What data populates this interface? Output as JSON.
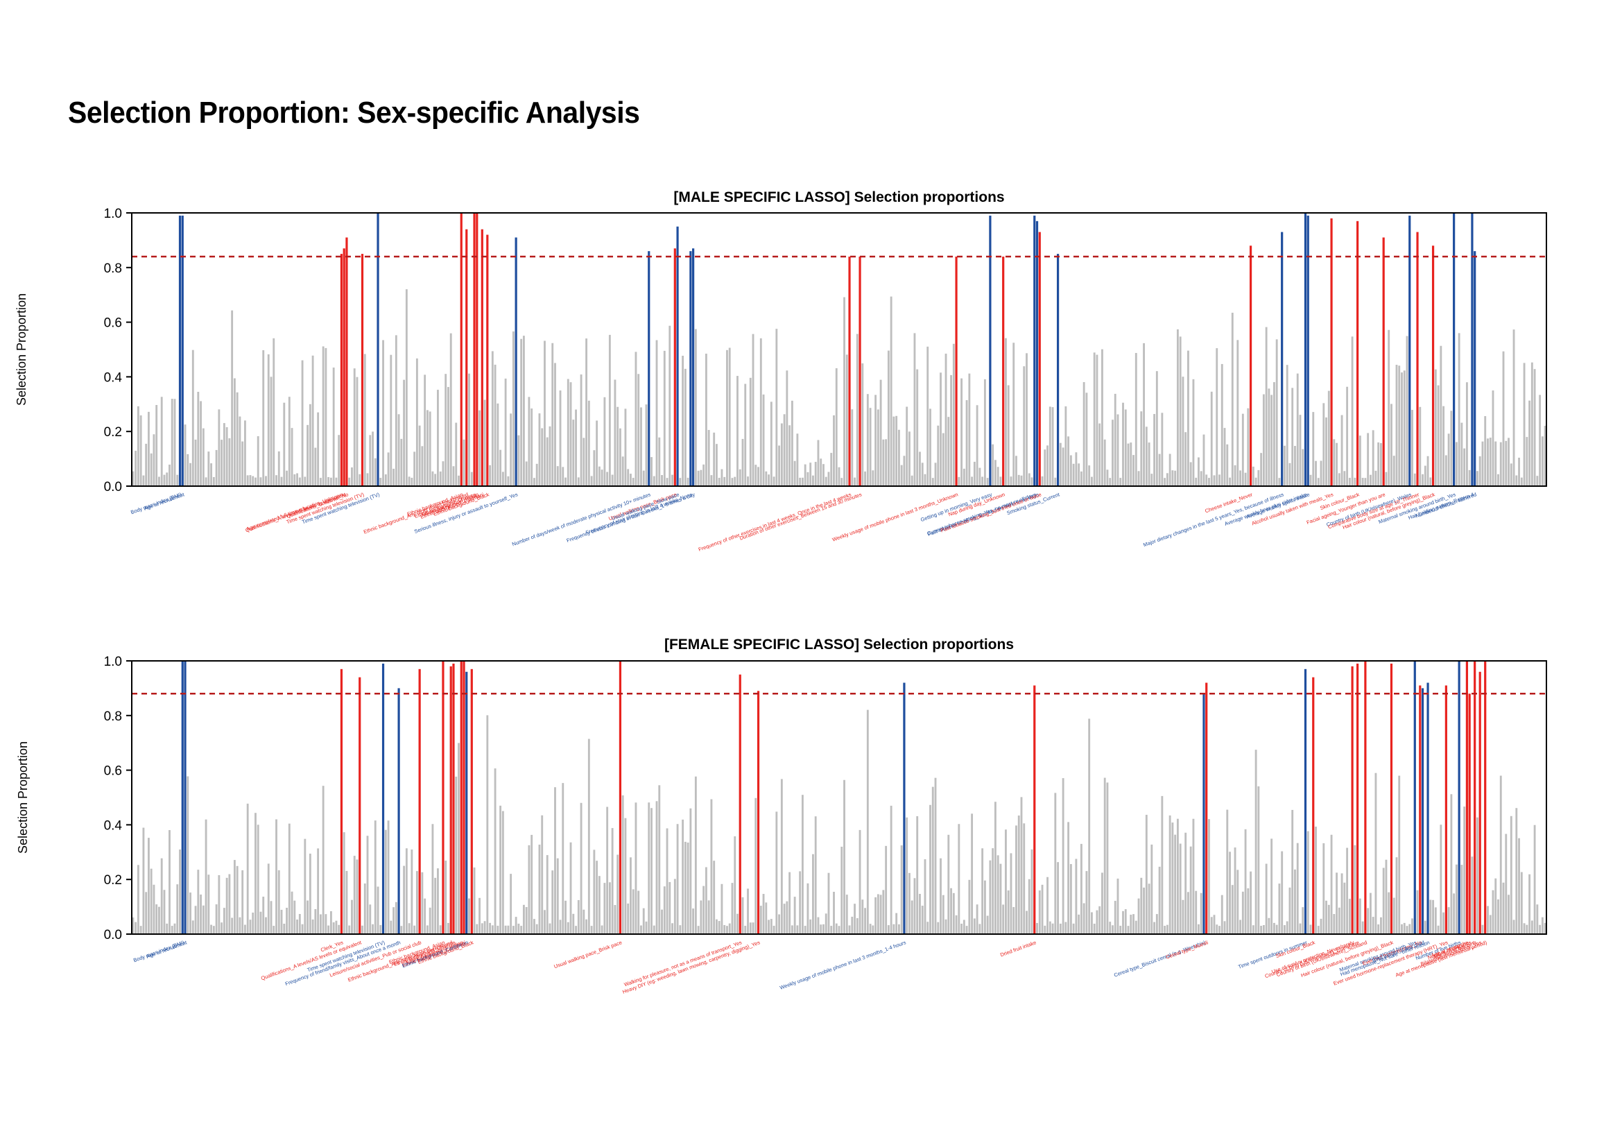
{
  "page": {
    "title": "Selection Proportion: Sex-specific Analysis"
  },
  "colors": {
    "neutral_bar": "#bebebe",
    "blue": "#1f4e9e",
    "red": "#e8231f",
    "threshold": "#b71c1c"
  },
  "chart_data": [
    {
      "type": "bar",
      "title": "[MALE SPECIFIC LASSO] Selection proportions",
      "ylabel": "Selection Proportion",
      "xlabel": "",
      "ylim": [
        0,
        1
      ],
      "yticks": [
        "0.0",
        "0.2",
        "0.4",
        "0.6",
        "0.8",
        "1.0"
      ],
      "threshold": 0.84,
      "n_predictors": 543,
      "highlighted": [
        {
          "label": "Body mass index (BMI)",
          "x": 18,
          "value": 0.99,
          "group": "blue"
        },
        {
          "label": "Age at recruitment",
          "x": 19,
          "value": 0.99,
          "group": "blue"
        },
        {
          "label": "Age completed full time education_Unknown",
          "x": 80,
          "value": 0.85,
          "group": "red"
        },
        {
          "label": "Qualifications_A levels/AS levels or equivalent",
          "x": 81,
          "value": 0.87,
          "group": "red"
        },
        {
          "label": "Qualifications_Unknown_No",
          "x": 82,
          "value": 0.91,
          "group": "red"
        },
        {
          "label": "Time spent watching television (TV)",
          "x": 88,
          "value": 0.85,
          "group": "red"
        },
        {
          "label": "Time spent watching television (TV)",
          "x": 94,
          "value": 1.0,
          "group": "blue"
        },
        {
          "label": "Ethnic background_Asian",
          "x": 126,
          "value": 1.0,
          "group": "red"
        },
        {
          "label": "Ethnic background_Any other Asian background",
          "x": 128,
          "value": 0.94,
          "group": "red"
        },
        {
          "label": "Ethnic background_Chinese",
          "x": 131,
          "value": 1.0,
          "group": "red"
        },
        {
          "label": "Ethnic background_Indian",
          "x": 132,
          "value": 1.0,
          "group": "red"
        },
        {
          "label": "Ethnic background_Pakistani",
          "x": 134,
          "value": 0.94,
          "group": "red"
        },
        {
          "label": "Ethnic background_Black",
          "x": 136,
          "value": 0.92,
          "group": "red"
        },
        {
          "label": "Serious illness, injury or assault to yourself_Yes",
          "x": 147,
          "value": 0.91,
          "group": "blue"
        },
        {
          "label": "Number of days/week of moderate physical activity 10+ minutes",
          "x": 198,
          "value": 0.86,
          "group": "blue"
        },
        {
          "label": "Usual walking pace_Brisk pace",
          "x": 208,
          "value": 0.87,
          "group": "red"
        },
        {
          "label": "Usual walking pace_Slow pace",
          "x": 209,
          "value": 0.95,
          "group": "blue"
        },
        {
          "label": "Frequency of stair climbing in last 4 weeks_None",
          "x": 214,
          "value": 0.86,
          "group": "blue"
        },
        {
          "label": "Frequency of stair climbing in last 4 weeks_1-5 times a day",
          "x": 215,
          "value": 0.87,
          "group": "blue"
        },
        {
          "label": "Frequency of other exercises in last 4 weeks_Once in the last 4 weeks",
          "x": 275,
          "value": 0.84,
          "group": "red"
        },
        {
          "label": "Duration of other exercises_Between 15 and 30 minutes",
          "x": 279,
          "value": 0.84,
          "group": "red"
        },
        {
          "label": "Weekly usage of mobile phone in last 3 months_Unknown",
          "x": 316,
          "value": 0.84,
          "group": "red"
        },
        {
          "label": "Getting up in morning_Very easy",
          "x": 329,
          "value": 0.99,
          "group": "blue"
        },
        {
          "label": "Nap during day_Unknown",
          "x": 334,
          "value": 0.84,
          "group": "red"
        },
        {
          "label": "Current tobacco smoking_Yes, on most or all days",
          "x": 346,
          "value": 0.99,
          "group": "blue"
        },
        {
          "label": "Past tobacco smoking_Smoked on most or all days",
          "x": 347,
          "value": 0.97,
          "group": "blue"
        },
        {
          "label": "Past tobacco smoking_Just tried once or twice",
          "x": 348,
          "value": 0.93,
          "group": "red"
        },
        {
          "label": "Smoking status_Current",
          "x": 355,
          "value": 0.85,
          "group": "blue"
        },
        {
          "label": "Cheese intake_Never",
          "x": 429,
          "value": 0.88,
          "group": "red"
        },
        {
          "label": "Major dietary changes in the last 5 years_Yes, because of illness",
          "x": 441,
          "value": 0.93,
          "group": "blue"
        },
        {
          "label": "Average weekly beer plus cider intake",
          "x": 450,
          "value": 1.0,
          "group": "blue"
        },
        {
          "label": "Average weekly spirits intake",
          "x": 451,
          "value": 0.99,
          "group": "blue"
        },
        {
          "label": "Alcohol usually taken with meals_Yes",
          "x": 460,
          "value": 0.98,
          "group": "red"
        },
        {
          "label": "Skin colour_Black",
          "x": 470,
          "value": 0.97,
          "group": "red"
        },
        {
          "label": "Facial ageing_Younger than you are",
          "x": 480,
          "value": 0.91,
          "group": "red"
        },
        {
          "label": "Country of birth (UK/elsewhere)_Wales",
          "x": 490,
          "value": 0.99,
          "group": "blue"
        },
        {
          "label": "Comparative body size at age 10_Thinner",
          "x": 493,
          "value": 0.93,
          "group": "red"
        },
        {
          "label": "Hair colour (natural, before greying)_Black",
          "x": 499,
          "value": 0.88,
          "group": "red"
        },
        {
          "label": "Maternal smoking around birth_Yes",
          "x": 507,
          "value": 1.0,
          "group": "blue"
        },
        {
          "label": "Hair balding pattern_Pattern 4",
          "x": 514,
          "value": 1.0,
          "group": "blue"
        },
        {
          "label": "Number of children fathered",
          "x": 515,
          "value": 0.86,
          "group": "blue"
        }
      ]
    },
    {
      "type": "bar",
      "title": "[FEMALE SPECIFIC LASSO] Selection proportions",
      "ylabel": "Selection Proportion",
      "xlabel": "",
      "ylim": [
        0,
        1
      ],
      "yticks": [
        "0.0",
        "0.2",
        "0.4",
        "0.6",
        "0.8",
        "1.0"
      ],
      "threshold": 0.88,
      "n_predictors": 543,
      "highlighted": [
        {
          "label": "Body mass index (BMI)",
          "x": 19,
          "value": 1.0,
          "group": "blue"
        },
        {
          "label": "Age at recruitment",
          "x": 20,
          "value": 1.0,
          "group": "blue"
        },
        {
          "label": "Clerk_Yes",
          "x": 80,
          "value": 0.97,
          "group": "red"
        },
        {
          "label": "Qualifications_A levels/AS levels or equivalent",
          "x": 87,
          "value": 0.94,
          "group": "red"
        },
        {
          "label": "Time spent watching television (TV)",
          "x": 96,
          "value": 0.99,
          "group": "blue"
        },
        {
          "label": "Frequency of friend/family visits_About once a month",
          "x": 102,
          "value": 0.9,
          "group": "blue"
        },
        {
          "label": "Leisure/social activities_Pub or social club",
          "x": 110,
          "value": 0.97,
          "group": "red"
        },
        {
          "label": "Ethnic background_Asian",
          "x": 119,
          "value": 1.0,
          "group": "red"
        },
        {
          "label": "Ethnic background_Any other Asian background",
          "x": 122,
          "value": 0.98,
          "group": "red"
        },
        {
          "label": "Ethnic background_Chinese",
          "x": 123,
          "value": 0.99,
          "group": "red"
        },
        {
          "label": "Ethnic background_Indian",
          "x": 126,
          "value": 1.0,
          "group": "red"
        },
        {
          "label": "Ethnic background_Pakistani",
          "x": 127,
          "value": 1.0,
          "group": "red"
        },
        {
          "label": "Ethnic background_Caribbean",
          "x": 128,
          "value": 0.96,
          "group": "blue"
        },
        {
          "label": "Ethnic background_Black",
          "x": 130,
          "value": 0.97,
          "group": "red"
        },
        {
          "label": "Usual walking pace_Brisk pace",
          "x": 187,
          "value": 1.0,
          "group": "red"
        },
        {
          "label": "Walking for pleasure, not as a means of transport_Yes",
          "x": 233,
          "value": 0.95,
          "group": "red"
        },
        {
          "label": "Heavy DIY (eg: weeding, lawn mowing, carpentry, digging)_Yes",
          "x": 240,
          "value": 0.89,
          "group": "red"
        },
        {
          "label": "Weekly usage of mobile phone in last 3 months_1-4 hours",
          "x": 296,
          "value": 0.92,
          "group": "blue"
        },
        {
          "label": "Dried fruit intake",
          "x": 346,
          "value": 0.91,
          "group": "red"
        },
        {
          "label": "Cereal type_Biscuit cereal (e.g. Weetabix)",
          "x": 411,
          "value": 0.88,
          "group": "blue"
        },
        {
          "label": "Cereal type_Muesli",
          "x": 412,
          "value": 0.92,
          "group": "red"
        },
        {
          "label": "Time spent outdoors in summer",
          "x": 450,
          "value": 0.97,
          "group": "blue"
        },
        {
          "label": "Skin colour_Black",
          "x": 453,
          "value": 0.94,
          "group": "red"
        },
        {
          "label": "Use of sun/uv protection_Never/rarely",
          "x": 468,
          "value": 0.98,
          "group": "red"
        },
        {
          "label": "Country of birth (UK/elsewhere)_Elsewhere",
          "x": 470,
          "value": 0.99,
          "group": "red"
        },
        {
          "label": "Country of birth (UK/elsewhere)_Scotland",
          "x": 473,
          "value": 1.0,
          "group": "red"
        },
        {
          "label": "Hair colour (natural, before greying)_Black",
          "x": 483,
          "value": 0.99,
          "group": "red"
        },
        {
          "label": "Maternal smoking around birth_Yes",
          "x": 492,
          "value": 1.0,
          "group": "blue"
        },
        {
          "label": "Ever had hysterectomy_No",
          "x": 494,
          "value": 0.91,
          "group": "red"
        },
        {
          "label": "Birth weight of first child",
          "x": 495,
          "value": 0.9,
          "group": "blue"
        },
        {
          "label": "Had menopause_Not sure - other reason",
          "x": 497,
          "value": 0.92,
          "group": "blue"
        },
        {
          "label": "Ever used hormone-replacement therapy (HRT)_Yes",
          "x": 504,
          "value": 0.91,
          "group": "red"
        },
        {
          "label": "Number of live births",
          "x": 509,
          "value": 1.0,
          "group": "blue"
        },
        {
          "label": "Age at menarche",
          "x": 512,
          "value": 1.0,
          "group": "red"
        },
        {
          "label": "Number of stillbirths",
          "x": 513,
          "value": 0.88,
          "group": "red"
        },
        {
          "label": "Age at first live birth",
          "x": 515,
          "value": 1.0,
          "group": "red"
        },
        {
          "label": "Bilateral oophorectomy_Yes",
          "x": 517,
          "value": 0.96,
          "group": "red"
        },
        {
          "label": "Age at menopause (last menstrual period)",
          "x": 519,
          "value": 1.0,
          "group": "red"
        }
      ]
    }
  ]
}
